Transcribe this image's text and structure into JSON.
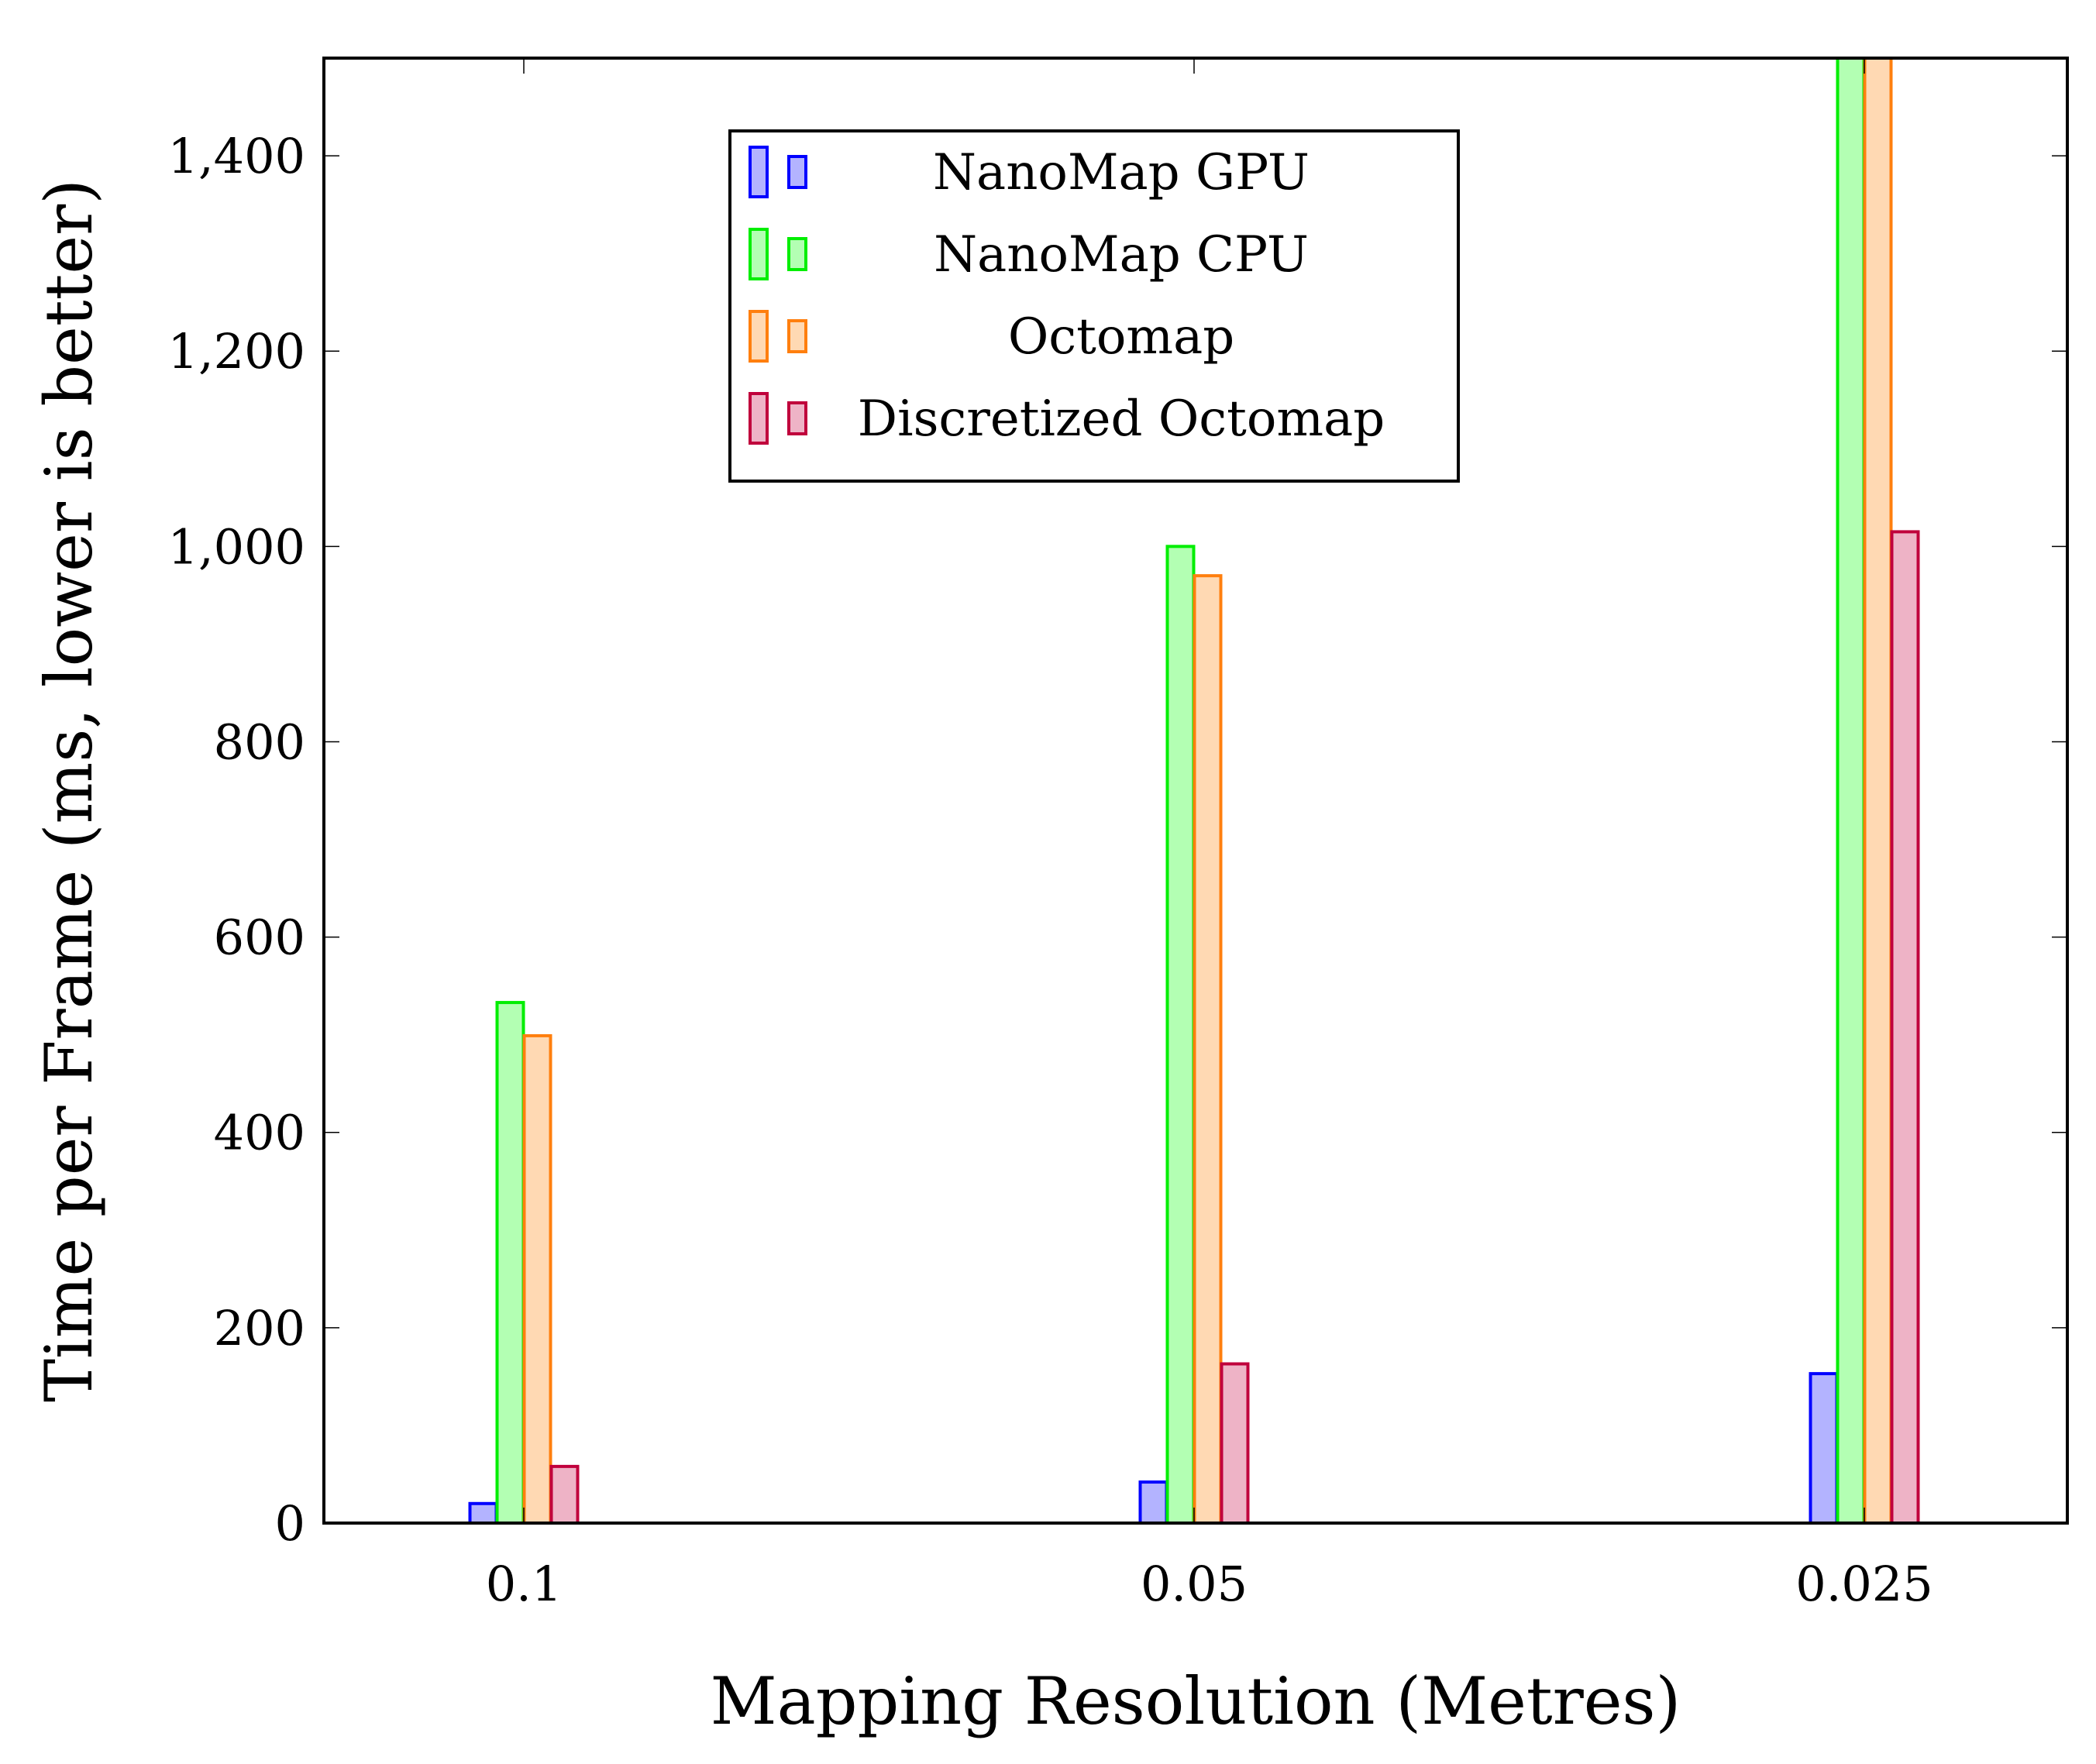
{
  "chart_data": {
    "type": "bar",
    "title": "",
    "xlabel": "Mapping Resolution (Metres)",
    "ylabel": "Time per Frame (ms, lower is better)",
    "categories": [
      "0.1",
      "0.05",
      "0.025"
    ],
    "ylim": [
      0,
      1500
    ],
    "yticks": [
      0,
      200,
      400,
      600,
      800,
      1000,
      1200,
      1400
    ],
    "ytick_labels": [
      "0",
      "200",
      "400",
      "600",
      "800",
      "1,000",
      "1,200",
      "1,400"
    ],
    "grid": false,
    "legend_position": "top-center",
    "series": [
      {
        "name": "NanoMap GPU",
        "values": [
          20,
          42,
          153
        ],
        "stroke": "#0000ff",
        "fill": "#b3b3ff"
      },
      {
        "name": "NanoMap CPU",
        "values": [
          533,
          1000,
          1500
        ],
        "stroke": "#00ee00",
        "fill": "#b3ffb3"
      },
      {
        "name": "Octomap",
        "values": [
          499,
          970,
          1500
        ],
        "stroke": "#ff7f0e",
        "fill": "#ffd9b3"
      },
      {
        "name": "Discretized Octomap",
        "values": [
          58,
          163,
          1015
        ],
        "stroke": "#c0003c",
        "fill": "#eeb3c6"
      }
    ]
  }
}
